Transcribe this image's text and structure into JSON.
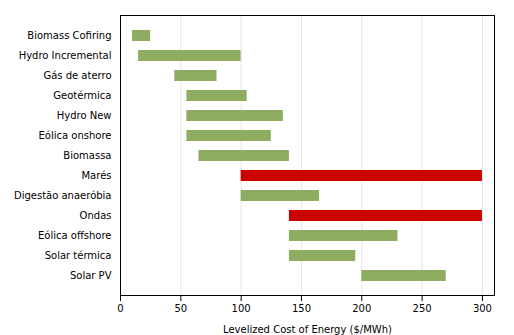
{
  "chart_data": {
    "type": "bar",
    "orientation": "horizontal",
    "xlabel": "Levelized Cost of Energy ($/MWh)",
    "categories": [
      "Solar PV",
      "Solar térmica",
      "Eólica offshore",
      "Ondas",
      "Digestão anaeróbia",
      "Marés",
      "Biomassa",
      "Eólica onshore",
      "Hydro New",
      "Geotérmica",
      "Gás de aterro",
      "Hydro Incremental",
      "Biomass Cofiring"
    ],
    "values": [
      [
        200,
        270
      ],
      [
        140,
        195
      ],
      [
        140,
        230
      ],
      [
        140,
        300
      ],
      [
        100,
        165
      ],
      [
        100,
        300
      ],
      [
        65,
        140
      ],
      [
        55,
        125
      ],
      [
        55,
        135
      ],
      [
        55,
        105
      ],
      [
        45,
        80
      ],
      [
        15,
        100
      ],
      [
        10,
        25
      ]
    ],
    "colors": [
      "#8fad60",
      "#8fad60",
      "#8fad60",
      "#cc0000",
      "#8fad60",
      "#cc0000",
      "#8fad60",
      "#8fad60",
      "#8fad60",
      "#8fad60",
      "#8fad60",
      "#8fad60",
      "#8fad60"
    ],
    "xlim": [
      0,
      310
    ],
    "xticks": [
      0,
      50,
      100,
      150,
      200,
      250,
      300
    ],
    "grid": true
  }
}
